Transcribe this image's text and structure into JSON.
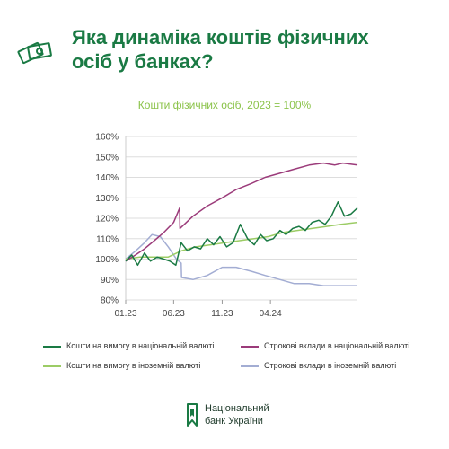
{
  "header": {
    "title_line1": "Яка динаміка коштів фізичних",
    "title_line2": "осіб у банках?",
    "icon": "money-bills-icon"
  },
  "logo": {
    "line1": "Національний",
    "line2": "банк України",
    "icon": "nbu-logo-icon"
  },
  "colors": {
    "title": "#1a7a44",
    "subtitle": "#8bc34a",
    "grid": "#dddddd",
    "demand_uah": "#1a7a44",
    "demand_fx": "#9ccc65",
    "term_uah": "#9b3b7a",
    "term_fx": "#a3add3"
  },
  "chart_data": {
    "type": "line",
    "title": "Кошти фізичних осіб, 2023 = 100%",
    "xlabel": "",
    "ylabel": "",
    "ylim": [
      80,
      160
    ],
    "yticks": [
      80,
      90,
      100,
      110,
      120,
      130,
      140,
      150,
      160
    ],
    "ytick_labels": [
      "80%",
      "90%",
      "100%",
      "110%",
      "120%",
      "130%",
      "140%",
      "150%",
      "160%"
    ],
    "xlim": [
      "2023-01-01",
      "2024-12-31"
    ],
    "xticks": [
      "2023-01-01",
      "2023-06-01",
      "2023-11-01",
      "2024-04-01"
    ],
    "xtick_labels": [
      "01.23",
      "06.23",
      "11.23",
      "04.24"
    ],
    "grid": true,
    "legend_position": "bottom",
    "series": [
      {
        "name": "Кошти на вимогу в національній валюті",
        "x": [
          "2023-01-01",
          "2023-01-20",
          "2023-02-08",
          "2023-03-01",
          "2023-03-20",
          "2023-04-10",
          "2023-05-01",
          "2023-05-20",
          "2023-06-08",
          "2023-06-25",
          "2023-07-15",
          "2023-08-05",
          "2023-08-25",
          "2023-09-15",
          "2023-10-05",
          "2023-10-25",
          "2023-11-15",
          "2023-12-05",
          "2023-12-28",
          "2024-01-20",
          "2024-02-10",
          "2024-03-01",
          "2024-03-20",
          "2024-04-10",
          "2024-05-01",
          "2024-05-20",
          "2024-06-10",
          "2024-06-30",
          "2024-07-20",
          "2024-08-10",
          "2024-08-31",
          "2024-09-20",
          "2024-10-10",
          "2024-10-31",
          "2024-11-20",
          "2024-12-10",
          "2024-12-31"
        ],
        "y": [
          99,
          102,
          97,
          103,
          99,
          101,
          100,
          99,
          97,
          108,
          104,
          106,
          105,
          110,
          107,
          111,
          106,
          108,
          117,
          110,
          107,
          112,
          109,
          110,
          114,
          112,
          115,
          116,
          114,
          118,
          119,
          117,
          121,
          128,
          121,
          122,
          125
        ]
      },
      {
        "name": "Кошти на вимогу в іноземній валюті",
        "x": [
          "2023-01-01",
          "2023-02-15",
          "2023-04-01",
          "2023-05-15",
          "2023-06-25",
          "2023-08-10",
          "2023-09-25",
          "2023-11-10",
          "2023-12-25",
          "2024-02-10",
          "2024-03-25",
          "2024-05-10",
          "2024-06-25",
          "2024-08-10",
          "2024-09-25",
          "2024-11-10",
          "2024-12-31"
        ],
        "y": [
          100,
          101,
          101,
          101,
          104,
          106,
          107,
          108,
          109,
          110,
          111,
          113,
          114,
          115,
          116,
          117,
          118
        ]
      },
      {
        "name": "Строкові вклади в національній валюті",
        "x": [
          "2023-01-01",
          "2023-02-01",
          "2023-03-01",
          "2023-04-01",
          "2023-05-01",
          "2023-06-01",
          "2023-06-20",
          "2023-06-21",
          "2023-08-01",
          "2023-09-15",
          "2023-11-01",
          "2023-12-15",
          "2024-02-01",
          "2024-03-15",
          "2024-05-01",
          "2024-06-15",
          "2024-08-01",
          "2024-09-15",
          "2024-10-20",
          "2024-11-15",
          "2024-12-31"
        ],
        "y": [
          99,
          102,
          105,
          109,
          113,
          118,
          125,
          115,
          121,
          126,
          130,
          134,
          137,
          140,
          142,
          144,
          146,
          147,
          146,
          147,
          146
        ]
      },
      {
        "name": "Строкові вклади в іноземній валюті",
        "x": [
          "2023-01-01",
          "2023-02-01",
          "2023-03-01",
          "2023-03-25",
          "2023-04-20",
          "2023-05-15",
          "2023-06-10",
          "2023-06-25",
          "2023-06-26",
          "2023-08-01",
          "2023-09-15",
          "2023-11-01",
          "2023-12-15",
          "2024-02-01",
          "2024-03-15",
          "2024-05-01",
          "2024-06-15",
          "2024-08-01",
          "2024-09-15",
          "2024-11-01",
          "2024-12-31"
        ],
        "y": [
          100,
          104,
          108,
          112,
          111,
          106,
          100,
          98,
          91,
          90,
          92,
          96,
          96,
          94,
          92,
          90,
          88,
          88,
          87,
          87,
          87
        ]
      }
    ]
  }
}
